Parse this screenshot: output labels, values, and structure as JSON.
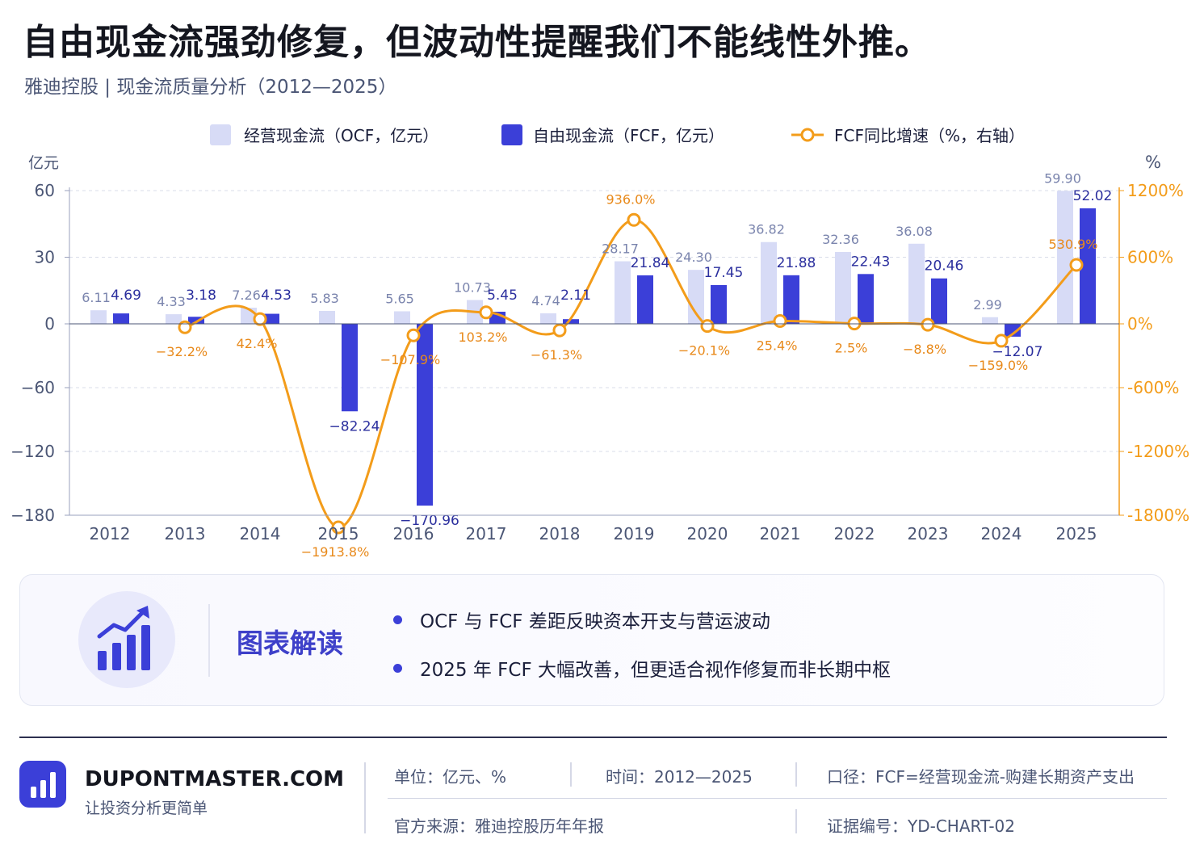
{
  "header": {
    "title": "自由现金流强劲修复，但波动性提醒我们不能线性外推。",
    "subtitle": "雅迪控股 | 现金流质量分析（2012—2025）"
  },
  "legend": {
    "ocf": "经营现金流（OCF，亿元）",
    "fcf": "自由现金流（FCF，亿元）",
    "growth": "FCF同比增速（%，右轴）"
  },
  "axes": {
    "left_unit": "亿元",
    "right_unit": "%"
  },
  "colors": {
    "ocf": "#d7dbf6",
    "fcf": "#3b3fd8",
    "growth": "#f39c1a",
    "fcf_label": "#2b2f9e",
    "ocf_label": "#7a84ad",
    "axis_text": "#4b5675"
  },
  "chart_data": {
    "type": "bar",
    "categories": [
      "2012",
      "2013",
      "2014",
      "2015",
      "2016",
      "2017",
      "2018",
      "2019",
      "2020",
      "2021",
      "2022",
      "2023",
      "2024",
      "2025"
    ],
    "series": [
      {
        "name": "经营现金流（OCF，亿元）",
        "type": "bar",
        "axis": "left",
        "values": [
          6.11,
          4.33,
          7.26,
          5.83,
          5.65,
          10.73,
          4.74,
          28.17,
          24.3,
          36.82,
          32.36,
          36.08,
          2.99,
          59.9
        ],
        "labels": [
          "6.11",
          "4.33",
          "7.26",
          "5.83",
          "5.65",
          "10.73",
          "4.74",
          "28.17",
          "24.30",
          "36.82",
          "32.36",
          "36.08",
          "2.99",
          "59.90"
        ]
      },
      {
        "name": "自由现金流（FCF，亿元）",
        "type": "bar",
        "axis": "left",
        "values": [
          4.69,
          3.18,
          4.53,
          -82.24,
          -170.96,
          5.45,
          2.11,
          21.84,
          17.45,
          21.88,
          22.43,
          20.46,
          -12.07,
          52.02
        ],
        "labels": [
          "4.69",
          "3.18",
          "4.53",
          "−82.24",
          "−170.96",
          "5.45",
          "2.11",
          "21.84",
          "17.45",
          "21.88",
          "22.43",
          "20.46",
          "−12.07",
          "52.02"
        ]
      },
      {
        "name": "FCF同比增速（%，右轴）",
        "type": "line",
        "axis": "right",
        "values": [
          null,
          -32.2,
          42.4,
          -1913.8,
          -107.9,
          103.2,
          -61.3,
          936.0,
          -20.1,
          25.4,
          2.5,
          -8.8,
          -159.0,
          530.9
        ],
        "labels": [
          "",
          "−32.2%",
          "42.4%",
          "−1913.8%",
          "−107.9%",
          "103.2%",
          "−61.3%",
          "936.0%",
          "−20.1%",
          "25.4%",
          "2.5%",
          "−8.8%",
          "−159.0%",
          "530.9%"
        ]
      }
    ],
    "left_axis": {
      "ticks": [
        60,
        30,
        0,
        -60,
        -120,
        -180
      ],
      "tick_labels": [
        "60",
        "30",
        "0",
        "−60",
        "−120",
        "−180"
      ]
    },
    "right_axis": {
      "ticks": [
        1200,
        600,
        0,
        -600,
        -1200,
        -1800
      ],
      "tick_labels": [
        "1200%",
        "600%",
        "0%",
        "-600%",
        "-1200%",
        "-1800%"
      ]
    },
    "grid": true,
    "legend_position": "top-center"
  },
  "panel": {
    "heading": "图表解读",
    "icon": "chart-growth-icon",
    "bullets": [
      "OCF 与 FCF 差距反映资本开支与营运波动",
      "2025 年 FCF 大幅改善，但更适合视作修复而非长期中枢"
    ]
  },
  "footer": {
    "brand": "DUPONTMASTER.COM",
    "slogan": "让投资分析更简单",
    "logo_icon": "bar-chart-icon",
    "unit": {
      "label": "单位：",
      "value": "亿元、%"
    },
    "time": {
      "label": "时间：",
      "value": "2012—2025"
    },
    "basis": {
      "label": "口径：",
      "value": "FCF=经营现金流-购建长期资产支出"
    },
    "source": {
      "label": "官方来源：",
      "value": "雅迪控股历年年报"
    },
    "id": {
      "label": "证据编号：",
      "value": "YD-CHART-02"
    }
  }
}
